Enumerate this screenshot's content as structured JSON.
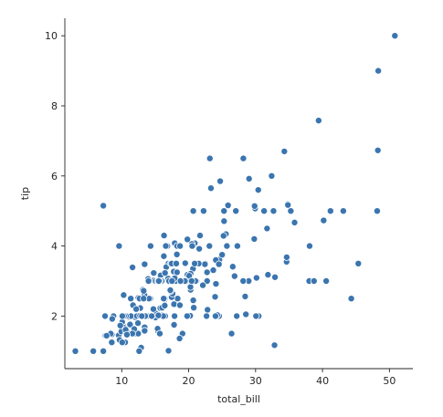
{
  "chart_data": {
    "type": "scatter",
    "title": "",
    "xlabel": "total_bill",
    "ylabel": "tip",
    "xlim": [
      1.5,
      53.5
    ],
    "ylim": [
      0.5,
      10.5
    ],
    "xticks": [
      10,
      20,
      30,
      40,
      50
    ],
    "yticks": [
      2,
      4,
      6,
      8,
      10
    ],
    "grid": false,
    "point_color": "#3b75af",
    "points": [
      [
        16.99,
        1.01
      ],
      [
        10.34,
        1.66
      ],
      [
        21.01,
        3.5
      ],
      [
        23.68,
        3.31
      ],
      [
        24.59,
        3.61
      ],
      [
        25.29,
        4.71
      ],
      [
        8.77,
        2.0
      ],
      [
        26.88,
        3.12
      ],
      [
        15.04,
        1.96
      ],
      [
        14.78,
        3.23
      ],
      [
        10.27,
        1.71
      ],
      [
        35.26,
        5.0
      ],
      [
        15.42,
        1.57
      ],
      [
        18.43,
        3.0
      ],
      [
        14.83,
        3.02
      ],
      [
        21.58,
        3.92
      ],
      [
        10.33,
        1.67
      ],
      [
        16.29,
        3.71
      ],
      [
        16.97,
        3.5
      ],
      [
        20.65,
        3.35
      ],
      [
        17.92,
        4.08
      ],
      [
        20.29,
        2.75
      ],
      [
        15.77,
        2.23
      ],
      [
        39.42,
        7.58
      ],
      [
        19.82,
        3.18
      ],
      [
        17.81,
        2.34
      ],
      [
        13.37,
        2.0
      ],
      [
        12.69,
        2.0
      ],
      [
        21.7,
        4.3
      ],
      [
        19.65,
        3.0
      ],
      [
        9.55,
        1.45
      ],
      [
        18.35,
        2.5
      ],
      [
        15.06,
        3.0
      ],
      [
        20.69,
        2.45
      ],
      [
        17.78,
        3.27
      ],
      [
        24.06,
        3.6
      ],
      [
        16.31,
        2.0
      ],
      [
        16.93,
        3.07
      ],
      [
        18.69,
        2.31
      ],
      [
        31.27,
        5.0
      ],
      [
        16.04,
        2.24
      ],
      [
        17.46,
        2.54
      ],
      [
        13.94,
        3.06
      ],
      [
        9.68,
        1.32
      ],
      [
        30.4,
        5.6
      ],
      [
        18.29,
        3.0
      ],
      [
        22.23,
        5.0
      ],
      [
        32.4,
        6.0
      ],
      [
        28.55,
        2.05
      ],
      [
        18.04,
        3.0
      ],
      [
        12.54,
        2.5
      ],
      [
        10.29,
        2.6
      ],
      [
        34.81,
        5.2
      ],
      [
        9.94,
        1.56
      ],
      [
        25.56,
        4.34
      ],
      [
        19.49,
        3.51
      ],
      [
        38.01,
        3.0
      ],
      [
        26.41,
        1.5
      ],
      [
        11.24,
        1.76
      ],
      [
        48.27,
        6.73
      ],
      [
        20.29,
        3.21
      ],
      [
        13.81,
        2.0
      ],
      [
        11.02,
        1.98
      ],
      [
        18.29,
        3.76
      ],
      [
        17.59,
        2.64
      ],
      [
        20.08,
        3.15
      ],
      [
        16.45,
        2.47
      ],
      [
        3.07,
        1.0
      ],
      [
        20.23,
        2.01
      ],
      [
        15.01,
        2.09
      ],
      [
        12.02,
        1.97
      ],
      [
        17.07,
        3.0
      ],
      [
        26.86,
        3.14
      ],
      [
        25.28,
        5.0
      ],
      [
        14.73,
        2.2
      ],
      [
        10.51,
        1.25
      ],
      [
        17.92,
        3.08
      ],
      [
        27.2,
        4.0
      ],
      [
        22.76,
        3.0
      ],
      [
        17.29,
        2.71
      ],
      [
        19.44,
        3.0
      ],
      [
        16.66,
        3.4
      ],
      [
        10.07,
        1.83
      ],
      [
        32.68,
        5.0
      ],
      [
        15.98,
        2.03
      ],
      [
        34.83,
        5.17
      ],
      [
        13.03,
        2.0
      ],
      [
        18.28,
        4.0
      ],
      [
        24.71,
        5.85
      ],
      [
        21.16,
        3.0
      ],
      [
        28.97,
        3.0
      ],
      [
        22.49,
        3.5
      ],
      [
        5.75,
        1.0
      ],
      [
        16.32,
        4.3
      ],
      [
        22.75,
        3.25
      ],
      [
        40.17,
        4.73
      ],
      [
        27.28,
        4.0
      ],
      [
        12.03,
        1.5
      ],
      [
        21.01,
        3.0
      ],
      [
        12.46,
        1.5
      ],
      [
        11.35,
        2.5
      ],
      [
        15.38,
        3.0
      ],
      [
        44.3,
        2.5
      ],
      [
        22.42,
        3.48
      ],
      [
        20.92,
        4.08
      ],
      [
        15.36,
        1.64
      ],
      [
        20.49,
        4.06
      ],
      [
        25.21,
        4.29
      ],
      [
        18.24,
        3.76
      ],
      [
        14.31,
        4.0
      ],
      [
        14.0,
        3.0
      ],
      [
        7.25,
        1.0
      ],
      [
        38.07,
        4.0
      ],
      [
        23.95,
        2.55
      ],
      [
        25.71,
        4.0
      ],
      [
        17.31,
        3.5
      ],
      [
        29.93,
        5.07
      ],
      [
        10.65,
        1.5
      ],
      [
        12.43,
        1.8
      ],
      [
        24.08,
        2.92
      ],
      [
        11.69,
        2.31
      ],
      [
        13.42,
        1.68
      ],
      [
        14.26,
        2.5
      ],
      [
        15.95,
        2.0
      ],
      [
        12.48,
        2.52
      ],
      [
        29.8,
        4.2
      ],
      [
        8.52,
        1.48
      ],
      [
        14.52,
        2.0
      ],
      [
        11.38,
        2.0
      ],
      [
        22.82,
        2.18
      ],
      [
        19.08,
        1.5
      ],
      [
        20.27,
        2.83
      ],
      [
        11.17,
        1.5
      ],
      [
        12.26,
        2.0
      ],
      [
        18.26,
        3.25
      ],
      [
        8.51,
        1.25
      ],
      [
        10.33,
        2.0
      ],
      [
        14.15,
        2.0
      ],
      [
        16.0,
        2.0
      ],
      [
        13.16,
        2.75
      ],
      [
        17.47,
        3.5
      ],
      [
        34.3,
        6.7
      ],
      [
        41.19,
        5.0
      ],
      [
        27.05,
        5.0
      ],
      [
        16.43,
        2.3
      ],
      [
        8.35,
        1.5
      ],
      [
        18.64,
        1.36
      ],
      [
        11.87,
        1.63
      ],
      [
        9.78,
        1.73
      ],
      [
        7.51,
        2.0
      ],
      [
        14.07,
        2.5
      ],
      [
        13.13,
        2.0
      ],
      [
        17.26,
        2.74
      ],
      [
        24.55,
        2.0
      ],
      [
        19.77,
        2.0
      ],
      [
        29.85,
        5.14
      ],
      [
        48.17,
        5.0
      ],
      [
        25.0,
        3.75
      ],
      [
        13.39,
        2.61
      ],
      [
        16.49,
        2.0
      ],
      [
        21.5,
        3.5
      ],
      [
        12.66,
        2.5
      ],
      [
        16.21,
        2.0
      ],
      [
        13.81,
        2.0
      ],
      [
        17.51,
        3.0
      ],
      [
        24.52,
        3.48
      ],
      [
        20.76,
        2.24
      ],
      [
        31.71,
        4.5
      ],
      [
        10.59,
        1.61
      ],
      [
        10.63,
        2.0
      ],
      [
        50.81,
        10.0
      ],
      [
        15.81,
        3.16
      ],
      [
        7.25,
        5.15
      ],
      [
        31.85,
        3.18
      ],
      [
        16.82,
        4.0
      ],
      [
        32.9,
        3.11
      ],
      [
        17.89,
        2.0
      ],
      [
        14.48,
        2.0
      ],
      [
        9.6,
        4.0
      ],
      [
        34.63,
        3.55
      ],
      [
        34.65,
        3.68
      ],
      [
        23.33,
        5.65
      ],
      [
        45.35,
        3.5
      ],
      [
        23.17,
        6.5
      ],
      [
        40.55,
        3.0
      ],
      [
        20.69,
        5.0
      ],
      [
        20.9,
        3.5
      ],
      [
        30.46,
        2.0
      ],
      [
        18.15,
        3.5
      ],
      [
        23.1,
        4.0
      ],
      [
        15.69,
        1.5
      ],
      [
        19.81,
        4.19
      ],
      [
        28.44,
        2.56
      ],
      [
        15.48,
        2.02
      ],
      [
        16.58,
        4.0
      ],
      [
        7.56,
        1.44
      ],
      [
        10.34,
        2.0
      ],
      [
        43.11,
        5.0
      ],
      [
        13.0,
        2.0
      ],
      [
        13.51,
        2.0
      ],
      [
        18.71,
        4.0
      ],
      [
        12.74,
        2.01
      ],
      [
        13.0,
        2.0
      ],
      [
        16.4,
        2.5
      ],
      [
        20.53,
        4.0
      ],
      [
        16.47,
        3.23
      ],
      [
        26.59,
        3.41
      ],
      [
        38.73,
        3.0
      ],
      [
        24.27,
        2.03
      ],
      [
        12.76,
        2.23
      ],
      [
        30.06,
        2.0
      ],
      [
        25.89,
        5.16
      ],
      [
        48.33,
        9.0
      ],
      [
        13.27,
        2.5
      ],
      [
        28.17,
        6.5
      ],
      [
        12.9,
        1.1
      ],
      [
        28.15,
        3.0
      ],
      [
        11.59,
        1.5
      ],
      [
        7.74,
        1.44
      ],
      [
        30.14,
        3.09
      ],
      [
        12.16,
        2.2
      ],
      [
        13.42,
        3.48
      ],
      [
        8.58,
        1.92
      ],
      [
        15.98,
        3.0
      ],
      [
        13.42,
        1.58
      ],
      [
        16.27,
        2.5
      ],
      [
        10.09,
        2.0
      ],
      [
        20.45,
        3.0
      ],
      [
        13.28,
        2.72
      ],
      [
        22.12,
        2.88
      ],
      [
        24.01,
        2.0
      ],
      [
        15.69,
        3.0
      ],
      [
        11.61,
        3.39
      ],
      [
        10.77,
        1.47
      ],
      [
        15.53,
        3.0
      ],
      [
        10.07,
        1.25
      ],
      [
        12.6,
        1.0
      ],
      [
        32.83,
        1.17
      ],
      [
        35.83,
        4.67
      ],
      [
        29.03,
        5.92
      ],
      [
        27.18,
        2.0
      ],
      [
        22.67,
        2.0
      ],
      [
        17.82,
        1.75
      ],
      [
        18.78,
        3.0
      ]
    ]
  }
}
